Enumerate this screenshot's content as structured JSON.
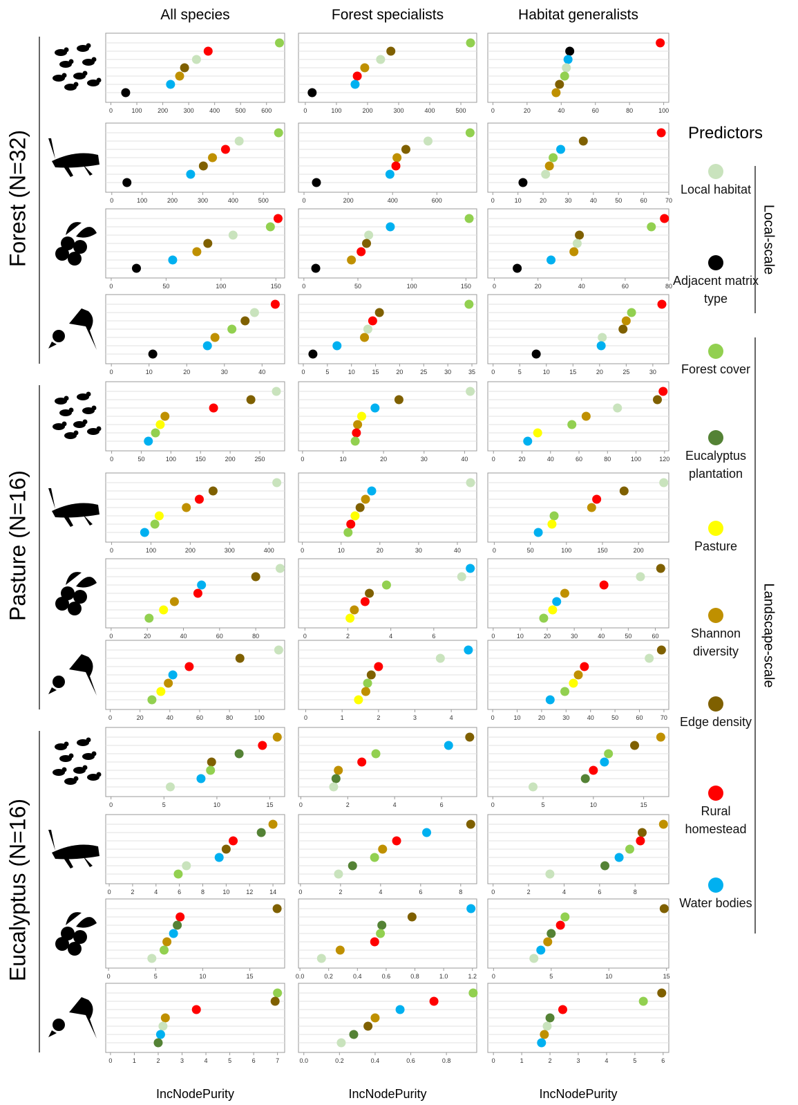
{
  "column_titles": [
    "All species",
    "Forest specialists",
    "Habitat generalists"
  ],
  "row_groups": [
    "Forest (N=32)",
    "Pasture (N=16)",
    "Eucalyptus (N=16)"
  ],
  "x_label": "IncNodePurity",
  "legend": {
    "title": "Predictors",
    "items": [
      {
        "name": "Local habitat",
        "color": "#c9e3bd"
      },
      {
        "name": "Adjacent matrix type",
        "color": "#000000"
      },
      {
        "name": "Forest cover",
        "color": "#92d050"
      },
      {
        "name": "Eucalyptus plantation",
        "color": "#548235"
      },
      {
        "name": "Pasture",
        "color": "#ffff00"
      },
      {
        "name": "Shannon diversity",
        "color": "#bf9000"
      },
      {
        "name": "Edge density",
        "color": "#7f6000"
      },
      {
        "name": "Rural homestead",
        "color": "#ff0000"
      },
      {
        "name": "Water bodies",
        "color": "#00b0f0"
      }
    ]
  },
  "scales": [
    "Local-scale",
    "Landscape-scale"
  ],
  "chart_data": [
    {
      "type": "dot",
      "xlim": [
        -20,
        670
      ],
      "xticks": [
        0,
        100,
        200,
        300,
        400,
        500,
        600
      ],
      "values": [
        330,
        57,
        650,
        null,
        null,
        265,
        284,
        375,
        230
      ]
    },
    {
      "type": "dot",
      "xlim": [
        -22,
        551
      ],
      "xticks": [
        0,
        100,
        200,
        300,
        400,
        500
      ],
      "values": [
        242,
        22,
        531,
        null,
        null,
        191,
        275,
        167,
        160
      ]
    },
    {
      "type": "dot",
      "xlim": [
        -3,
        103
      ],
      "xticks": [
        0,
        20,
        40,
        60,
        80,
        100
      ],
      "values": [
        43,
        45,
        42,
        null,
        null,
        37,
        39,
        98,
        44
      ]
    },
    {
      "type": "dot",
      "xlim": [
        -20,
        570
      ],
      "xticks": [
        0,
        100,
        200,
        300,
        400,
        500
      ],
      "values": [
        420,
        50,
        550,
        null,
        null,
        332,
        302,
        375,
        260
      ]
    },
    {
      "type": "dot",
      "xlim": [
        -25,
        780
      ],
      "xticks": [
        0,
        200,
        400,
        600
      ],
      "values": [
        560,
        56,
        750,
        null,
        null,
        420,
        460,
        415,
        388
      ]
    },
    {
      "type": "dot",
      "xlim": [
        -2,
        70
      ],
      "xticks": [
        0,
        10,
        20,
        30,
        40,
        50,
        60,
        70
      ],
      "values": [
        21,
        12,
        24,
        null,
        null,
        22.5,
        36,
        67,
        27
      ]
    },
    {
      "type": "dot",
      "xlim": [
        -5,
        158
      ],
      "xticks": [
        0,
        50,
        100,
        150
      ],
      "values": [
        111,
        23,
        145,
        null,
        null,
        78,
        88,
        152,
        56
      ]
    },
    {
      "type": "dot",
      "xlim": [
        -5,
        160
      ],
      "xticks": [
        0,
        50,
        100,
        150
      ],
      "values": [
        60,
        11,
        153,
        null,
        null,
        44,
        58,
        53,
        80
      ]
    },
    {
      "type": "dot",
      "xlim": [
        -3,
        80
      ],
      "xticks": [
        0,
        20,
        40,
        60,
        80
      ],
      "values": [
        38,
        10.5,
        72,
        null,
        null,
        36.5,
        39,
        78,
        26
      ]
    },
    {
      "type": "dot",
      "xlim": [
        -1.5,
        46
      ],
      "xticks": [
        0,
        10,
        20,
        30,
        40
      ],
      "values": [
        38,
        11,
        32,
        null,
        null,
        27.5,
        35.5,
        43.5,
        25.5
      ]
    },
    {
      "type": "dot",
      "xlim": [
        -1,
        36
      ],
      "xticks": [
        0,
        5,
        10,
        15,
        20,
        25,
        30,
        35
      ],
      "values": [
        13.4,
        2,
        34.4,
        null,
        null,
        12.7,
        15.8,
        14.4,
        7
      ]
    },
    {
      "type": "dot",
      "xlim": [
        -1,
        33
      ],
      "xticks": [
        0,
        5,
        10,
        15,
        20,
        25,
        30
      ],
      "values": [
        20.5,
        8.1,
        26,
        null,
        null,
        25,
        24.4,
        31.7,
        20.3
      ]
    },
    {
      "type": "dot",
      "xlim": [
        -10,
        292
      ],
      "xticks": [
        0,
        50,
        100,
        150,
        200,
        250
      ],
      "values": [
        278,
        null,
        74,
        null,
        82,
        90,
        235,
        172,
        62
      ]
    },
    {
      "type": "dot",
      "xlim": [
        -1,
        43
      ],
      "xticks": [
        0,
        10,
        20,
        30,
        40
      ],
      "values": [
        41.4,
        null,
        13,
        null,
        14.6,
        13.6,
        23.8,
        13.3,
        17.9
      ]
    },
    {
      "type": "dot",
      "xlim": [
        -4,
        123
      ],
      "xticks": [
        0,
        20,
        40,
        60,
        80,
        100,
        120
      ],
      "values": [
        87,
        null,
        55,
        null,
        31,
        65,
        115,
        119,
        24
      ]
    },
    {
      "type": "dot",
      "xlim": [
        -15,
        440
      ],
      "xticks": [
        0,
        100,
        200,
        300,
        400
      ],
      "values": [
        420,
        null,
        110,
        null,
        121,
        190,
        258,
        223,
        84
      ]
    },
    {
      "type": "dot",
      "xlim": [
        -1,
        45
      ],
      "xticks": [
        0,
        10,
        20,
        30,
        40
      ],
      "values": [
        43.4,
        null,
        11.8,
        null,
        13.6,
        16.3,
        14.9,
        12.5,
        17.9
      ]
    },
    {
      "type": "dot",
      "xlim": [
        -9,
        242
      ],
      "xticks": [
        0,
        50,
        100,
        150,
        200
      ],
      "values": [
        235,
        null,
        83,
        null,
        80,
        135,
        180,
        142,
        61
      ]
    },
    {
      "type": "dot",
      "xlim": [
        -3,
        96
      ],
      "xticks": [
        0,
        20,
        40,
        60,
        80
      ],
      "values": [
        93.5,
        null,
        21,
        null,
        29,
        35,
        80,
        48,
        50
      ]
    },
    {
      "type": "dot",
      "xlim": [
        -0.3,
        8
      ],
      "xticks": [
        0,
        2,
        4,
        6
      ],
      "values": [
        7.3,
        null,
        3.8,
        null,
        2.1,
        2.3,
        3.0,
        2.8,
        7.7
      ]
    },
    {
      "type": "dot",
      "xlim": [
        -2,
        65
      ],
      "xticks": [
        0,
        10,
        20,
        30,
        40,
        50,
        60
      ],
      "values": [
        54.5,
        null,
        18.7,
        null,
        22,
        26.5,
        62,
        41,
        23.5
      ]
    },
    {
      "type": "dot",
      "xlim": [
        -3,
        117
      ],
      "xticks": [
        0,
        20,
        40,
        60,
        80,
        100
      ],
      "values": [
        113,
        null,
        28,
        null,
        34,
        39,
        87,
        53,
        42
      ]
    },
    {
      "type": "dot",
      "xlim": [
        -0.2,
        4.7
      ],
      "xticks": [
        0,
        1,
        2,
        3,
        4
      ],
      "values": [
        3.7,
        null,
        1.7,
        null,
        1.45,
        1.65,
        1.8,
        2.0,
        4.47
      ]
    },
    {
      "type": "dot",
      "xlim": [
        -2,
        72
      ],
      "xticks": [
        0,
        10,
        20,
        30,
        40,
        50,
        60,
        70
      ],
      "values": [
        64,
        null,
        29.5,
        null,
        33,
        35,
        69,
        37.5,
        23.5
      ]
    },
    {
      "type": "dot",
      "xlim": [
        -0.5,
        16.4
      ],
      "xticks": [
        0,
        5,
        10,
        15
      ],
      "values": [
        5.6,
        null,
        9.4,
        12.1,
        null,
        15.7,
        9.5,
        14.3,
        8.5
      ]
    },
    {
      "type": "dot",
      "xlim": [
        -0.1,
        7.5
      ],
      "xticks": [
        0,
        2,
        4,
        6
      ],
      "values": [
        1.4,
        null,
        3.2,
        1.5,
        null,
        1.6,
        7.2,
        2.6,
        6.3
      ]
    },
    {
      "type": "dot",
      "xlim": [
        -0.5,
        17.5
      ],
      "xticks": [
        0,
        5,
        10,
        15
      ],
      "values": [
        4.0,
        null,
        11.5,
        9.2,
        null,
        16.7,
        14.1,
        10.0,
        11.1
      ]
    },
    {
      "type": "dot",
      "xlim": [
        -0.3,
        15
      ],
      "xticks": [
        0,
        2,
        4,
        6,
        8,
        10,
        12,
        14
      ],
      "values": [
        6.6,
        null,
        5.9,
        13.0,
        null,
        14.0,
        10.0,
        10.6,
        9.4
      ]
    },
    {
      "type": "dot",
      "xlim": [
        -0.1,
        8.8
      ],
      "xticks": [
        0,
        2,
        4,
        6,
        8
      ],
      "values": [
        1.9,
        null,
        3.7,
        2.6,
        null,
        4.1,
        8.5,
        4.8,
        6.3
      ]
    },
    {
      "type": "dot",
      "xlim": [
        -0.3,
        9.9
      ],
      "xticks": [
        0,
        2,
        4,
        6,
        8
      ],
      "values": [
        3.2,
        null,
        7.7,
        6.3,
        null,
        9.6,
        8.4,
        8.3,
        7.1
      ]
    },
    {
      "type": "dot",
      "xlim": [
        -0.3,
        18.7
      ],
      "xticks": [
        0,
        5,
        10,
        15
      ],
      "values": [
        4.6,
        null,
        5.9,
        7.3,
        null,
        6.2,
        17.9,
        7.6,
        6.9
      ]
    },
    {
      "type": "dot",
      "xlim": [
        -0.01,
        1.23
      ],
      "xticks": [
        {
          "value": 0,
          "label": "0.0"
        },
        0.2,
        0.4,
        0.6,
        0.8,
        {
          "value": 1,
          "label": "1.0"
        },
        1.2
      ],
      "values": [
        0.15,
        null,
        0.56,
        0.57,
        null,
        0.28,
        0.78,
        0.52,
        1.19
      ]
    },
    {
      "type": "dot",
      "xlim": [
        -0.5,
        15.2
      ],
      "xticks": [
        0,
        5,
        10,
        15
      ],
      "values": [
        3.5,
        null,
        6.2,
        5.0,
        null,
        4.7,
        14.8,
        5.8,
        4.1
      ]
    },
    {
      "type": "dot",
      "xlim": [
        -0.2,
        7.3
      ],
      "xticks": [
        0,
        1,
        2,
        3,
        4,
        5,
        6,
        7
      ],
      "values": [
        2.2,
        null,
        7.0,
        2.0,
        null,
        2.3,
        6.9,
        3.6,
        2.1
      ]
    },
    {
      "type": "dot",
      "xlim": [
        -0.03,
        0.97
      ],
      "xticks": [
        {
          "value": 0,
          "label": "0.0"
        },
        0.2,
        0.4,
        0.6,
        0.8
      ],
      "values": [
        0.21,
        null,
        0.95,
        0.28,
        null,
        0.4,
        0.36,
        0.73,
        0.54
      ]
    },
    {
      "type": "dot",
      "xlim": [
        -0.2,
        6.2
      ],
      "xticks": [
        0,
        1,
        2,
        3,
        4,
        5,
        6
      ],
      "values": [
        1.9,
        null,
        5.3,
        2.0,
        null,
        1.8,
        5.95,
        2.45,
        1.7
      ]
    }
  ]
}
